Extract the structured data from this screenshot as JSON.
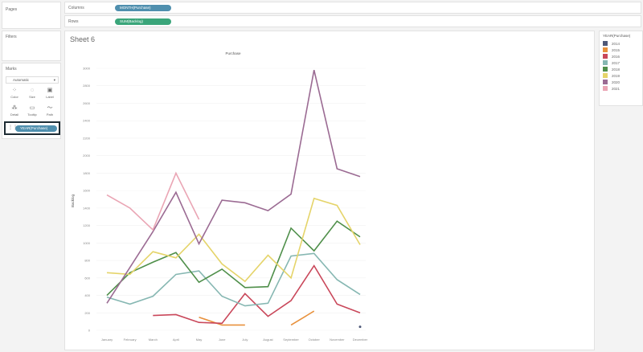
{
  "left": {
    "pages": "Pages",
    "filters": "Filters",
    "marks": "Marks",
    "mark_type": "Automatic",
    "cards": [
      {
        "label": "Color",
        "icon": "color-icon"
      },
      {
        "label": "Size",
        "icon": "size-icon"
      },
      {
        "label": "Label",
        "icon": "label-icon"
      },
      {
        "label": "Detail",
        "icon": "detail-icon"
      },
      {
        "label": "Tooltip",
        "icon": "tooltip-icon"
      },
      {
        "label": "Path",
        "icon": "path-icon"
      }
    ],
    "color_pill": "YEAR(Purchase)"
  },
  "shelves": {
    "columns_label": "Columns",
    "columns_pill": "MONTH(Purchase)",
    "rows_label": "Rows",
    "rows_pill": "SUM(Backlog)"
  },
  "sheet": {
    "title": "Sheet 6"
  },
  "legend": {
    "title": "YEAR(Purchase)",
    "items": [
      {
        "label": "2014",
        "color": "#4e5878"
      },
      {
        "label": "2015",
        "color": "#e8913c"
      },
      {
        "label": "2016",
        "color": "#c9475a"
      },
      {
        "label": "2017",
        "color": "#86b7b2"
      },
      {
        "label": "2018",
        "color": "#4f8f4a"
      },
      {
        "label": "2019",
        "color": "#e5d46a"
      },
      {
        "label": "2020",
        "color": "#9b6b93"
      },
      {
        "label": "2021",
        "color": "#eaa5b4"
      }
    ]
  },
  "chart_data": {
    "type": "line",
    "title": "Purchase",
    "xlabel": "",
    "ylabel": "Backlog",
    "ylim": [
      0,
      3000
    ],
    "yticks": [
      0,
      200,
      400,
      600,
      800,
      1000,
      1200,
      1400,
      1600,
      1800,
      2000,
      2200,
      2400,
      2600,
      2800,
      3000
    ],
    "grid": true,
    "legend": "right",
    "categories": [
      "January",
      "February",
      "March",
      "April",
      "May",
      "June",
      "July",
      "August",
      "September",
      "October",
      "November",
      "December"
    ],
    "series": [
      {
        "name": "2014",
        "values": [
          null,
          null,
          null,
          null,
          null,
          null,
          null,
          null,
          null,
          null,
          null,
          40
        ]
      },
      {
        "name": "2015",
        "values": [
          null,
          null,
          null,
          null,
          150,
          60,
          60,
          null,
          60,
          220,
          null,
          null
        ]
      },
      {
        "name": "2016",
        "values": [
          null,
          null,
          170,
          180,
          90,
          80,
          420,
          160,
          340,
          740,
          300,
          200
        ]
      },
      {
        "name": "2017",
        "values": [
          380,
          300,
          390,
          640,
          680,
          390,
          280,
          310,
          850,
          880,
          580,
          410
        ]
      },
      {
        "name": "2018",
        "values": [
          400,
          660,
          780,
          890,
          550,
          700,
          490,
          500,
          1170,
          910,
          1250,
          1070
        ]
      },
      {
        "name": "2019",
        "values": [
          660,
          640,
          900,
          830,
          1100,
          760,
          560,
          860,
          600,
          1510,
          1430,
          980
        ]
      },
      {
        "name": "2020",
        "values": [
          310,
          720,
          1130,
          1580,
          990,
          1490,
          1460,
          1370,
          1560,
          2980,
          1850,
          1760
        ]
      },
      {
        "name": "2021",
        "values": [
          1550,
          1400,
          1150,
          1800,
          1270,
          null,
          null,
          null,
          null,
          null,
          null,
          null
        ]
      }
    ]
  }
}
